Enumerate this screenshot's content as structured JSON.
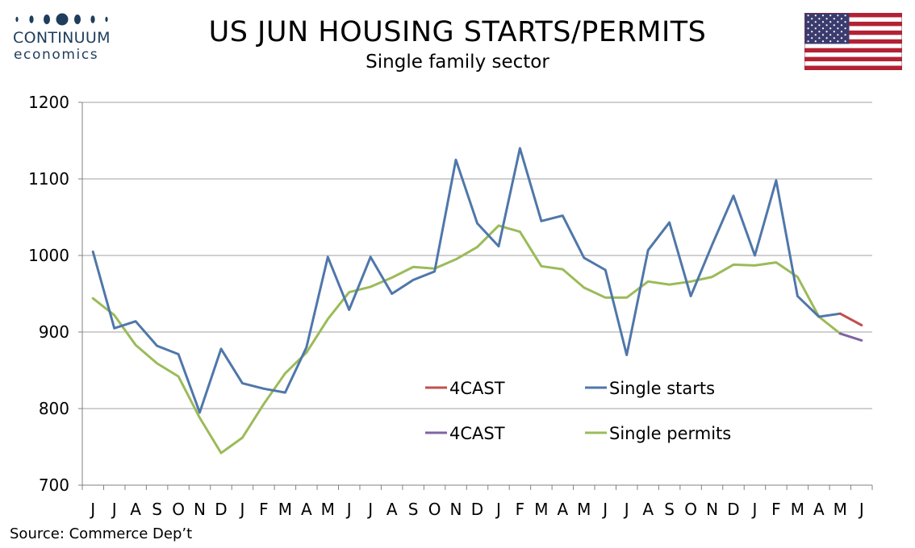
{
  "header": {
    "logo_word": "CONTINUUM",
    "logo_sub": "economics",
    "title": "US JUN HOUSING STARTS/PERMITS",
    "subtitle": "Single family sector",
    "flag_icon": "us-flag-icon"
  },
  "footer": {
    "source": "Source: Commerce Dep’t"
  },
  "colors": {
    "single_starts": "#4f77aa",
    "single_permits": "#9bbb59",
    "forecast_starts": "#c0504d",
    "forecast_permits": "#8064a2",
    "grid": "#a0a0a0",
    "logo": "#1f3d5c"
  },
  "chart_data": {
    "type": "line",
    "title": "US JUN HOUSING STARTS/PERMITS",
    "subtitle": "Single family sector",
    "categories": [
      "J",
      "J",
      "A",
      "S",
      "O",
      "N",
      "D",
      "J",
      "F",
      "M",
      "A",
      "M",
      "J",
      "J",
      "A",
      "S",
      "O",
      "N",
      "D",
      "J",
      "F",
      "M",
      "A",
      "M",
      "J",
      "J",
      "A",
      "S",
      "O",
      "N",
      "D",
      "J",
      "F",
      "M",
      "A",
      "M",
      "J"
    ],
    "ylim": [
      700,
      1200
    ],
    "yticks": [
      700,
      800,
      900,
      1000,
      1100,
      1200
    ],
    "grid": true,
    "legend_placement": "center-right inside plot",
    "series": [
      {
        "name": "Single starts",
        "color": "#4f77aa",
        "values": [
          1005,
          905,
          914,
          882,
          871,
          795,
          878,
          833,
          826,
          821,
          880,
          998,
          929,
          998,
          950,
          968,
          979,
          1125,
          1042,
          1012,
          1140,
          1045,
          1052,
          997,
          981,
          870,
          1007,
          1043,
          947,
          1014,
          1078,
          1000,
          1098,
          947,
          920,
          924,
          null
        ]
      },
      {
        "name": "4CAST",
        "color": "#c0504d",
        "values": [
          null,
          null,
          null,
          null,
          null,
          null,
          null,
          null,
          null,
          null,
          null,
          null,
          null,
          null,
          null,
          null,
          null,
          null,
          null,
          null,
          null,
          null,
          null,
          null,
          null,
          null,
          null,
          null,
          null,
          null,
          null,
          null,
          null,
          null,
          null,
          924,
          909
        ]
      },
      {
        "name": "Single permits",
        "color": "#9bbb59",
        "values": [
          944,
          922,
          883,
          859,
          842,
          788,
          742,
          762,
          806,
          846,
          873,
          917,
          952,
          959,
          971,
          985,
          983,
          995,
          1011,
          1039,
          1031,
          986,
          982,
          958,
          945,
          945,
          966,
          962,
          966,
          972,
          988,
          987,
          991,
          972,
          920,
          898,
          null
        ]
      },
      {
        "name": "4CAST",
        "color": "#8064a2",
        "values": [
          null,
          null,
          null,
          null,
          null,
          null,
          null,
          null,
          null,
          null,
          null,
          null,
          null,
          null,
          null,
          null,
          null,
          null,
          null,
          null,
          null,
          null,
          null,
          null,
          null,
          null,
          null,
          null,
          null,
          null,
          null,
          null,
          null,
          null,
          null,
          898,
          889
        ]
      }
    ],
    "legend": [
      {
        "label": "4CAST",
        "color": "#c0504d"
      },
      {
        "label": "Single starts",
        "color": "#4f77aa"
      },
      {
        "label": "4CAST",
        "color": "#8064a2"
      },
      {
        "label": "Single permits",
        "color": "#9bbb59"
      }
    ]
  }
}
